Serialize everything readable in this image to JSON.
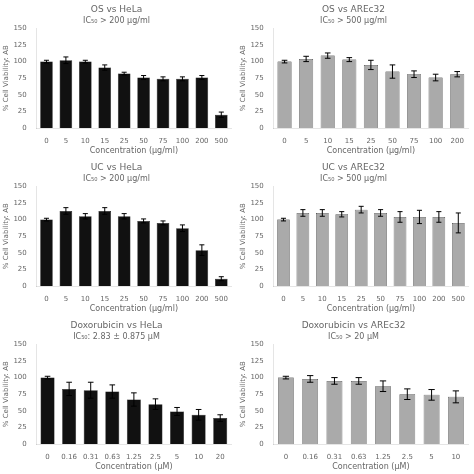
{
  "chart_data": [
    {
      "type": "bar",
      "title": "OS vs HeLa",
      "subtitle": "IC₅₀ > 200 μg/ml",
      "xlabel": "Concentration (μg/ml)",
      "ylabel": "% Cell Viability: AB",
      "categories": [
        "0",
        "5",
        "10",
        "15",
        "25",
        "50",
        "75",
        "100",
        "200",
        "500"
      ],
      "values": [
        100,
        102,
        100,
        91,
        82,
        76,
        74,
        74,
        76,
        20
      ],
      "errors": [
        2,
        5,
        2,
        4,
        2,
        3,
        3,
        3,
        3,
        4
      ],
      "color": "#111111",
      "ylim": [
        0,
        150
      ],
      "yticks": [
        0,
        25,
        50,
        75,
        100,
        125,
        150
      ],
      "grid": false
    },
    {
      "type": "bar",
      "title": "OS vs AREc32",
      "subtitle": "IC₅₀ > 500 μg/ml",
      "xlabel": "Concentration (μg/ml)",
      "ylabel": "% Cell Viability: AB",
      "categories": [
        "0",
        "5",
        "10",
        "15",
        "25",
        "50",
        "75",
        "100",
        "200"
      ],
      "values": [
        100,
        104,
        109,
        103,
        95,
        85,
        81,
        76,
        81
      ],
      "errors": [
        2,
        4,
        4,
        3,
        7,
        10,
        5,
        5,
        4
      ],
      "color": "#aaaaaa",
      "ylim": [
        0,
        150
      ],
      "yticks": [
        0,
        25,
        50,
        75,
        100,
        125,
        150
      ],
      "grid": false
    },
    {
      "type": "bar",
      "title": "UC vs HeLa",
      "subtitle": "IC₅₀ > 200 μg/ml",
      "xlabel": "Concentration (μg/ml)",
      "ylabel": "% Cell Viability: AB",
      "categories": [
        "0",
        "5",
        "10",
        "15",
        "25",
        "50",
        "75",
        "100",
        "200",
        "500"
      ],
      "values": [
        100,
        113,
        105,
        113,
        105,
        98,
        95,
        87,
        54,
        11
      ],
      "errors": [
        2,
        5,
        4,
        5,
        4,
        3,
        3,
        5,
        8,
        3
      ],
      "color": "#111111",
      "ylim": [
        0,
        150
      ],
      "yticks": [
        0,
        25,
        50,
        75,
        100,
        125,
        150
      ],
      "grid": false
    },
    {
      "type": "bar",
      "title": "UC vs AREc32",
      "subtitle": "IC₅₀ > 500 μg/ml",
      "xlabel": "Concentration (μg/ml)",
      "ylabel": "% Cell Viability: AB",
      "categories": [
        "0",
        "5",
        "10",
        "15",
        "25",
        "50",
        "75",
        "100",
        "200",
        "500"
      ],
      "values": [
        100,
        110,
        110,
        108,
        115,
        110,
        104,
        104,
        104,
        95
      ],
      "errors": [
        2,
        5,
        5,
        4,
        5,
        5,
        8,
        10,
        8,
        15
      ],
      "color": "#aaaaaa",
      "ylim": [
        0,
        150
      ],
      "yticks": [
        0,
        25,
        50,
        75,
        100,
        125,
        150
      ],
      "grid": false
    },
    {
      "type": "bar",
      "title": "Doxorubicin vs HeLa",
      "subtitle": "IC₅₀: 2.83 ± 0.875 μM",
      "xlabel": "Concentration (μM)",
      "ylabel": "% Cell Viability: AB",
      "categories": [
        "0",
        "0.16",
        "0.31",
        "0.63",
        "1.25",
        "2.5",
        "5",
        "10",
        "20"
      ],
      "values": [
        100,
        83,
        81,
        79,
        67,
        60,
        49,
        44,
        39
      ],
      "errors": [
        2,
        10,
        12,
        10,
        10,
        8,
        6,
        8,
        5
      ],
      "color": "#111111",
      "ylim": [
        0,
        150
      ],
      "yticks": [
        0,
        25,
        50,
        75,
        100,
        125,
        150
      ],
      "grid": false
    },
    {
      "type": "bar",
      "title": "Doxorubicin vs AREc32",
      "subtitle": "IC₅₀ > 20 μM",
      "xlabel": "Concentration (μM)",
      "ylabel": "% Cell Viability: AB",
      "categories": [
        "0",
        "0.16",
        "0.31",
        "0.63",
        "1.25",
        "2.5",
        "5",
        "10"
      ],
      "values": [
        100,
        98,
        95,
        95,
        87,
        75,
        74,
        71
      ],
      "errors": [
        2,
        5,
        5,
        5,
        8,
        8,
        8,
        9
      ],
      "color": "#aaaaaa",
      "ylim": [
        0,
        150
      ],
      "yticks": [
        0,
        25,
        50,
        75,
        100,
        125,
        150
      ],
      "grid": false
    }
  ]
}
